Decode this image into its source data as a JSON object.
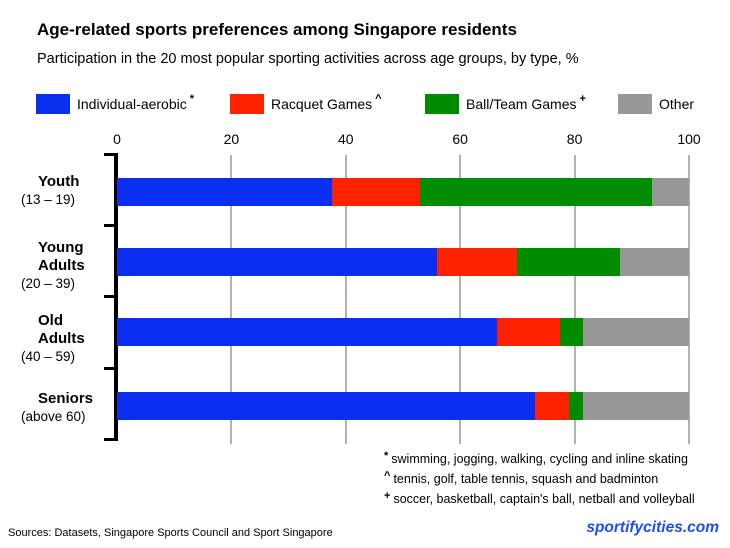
{
  "header": {
    "title": "Age-related sports preferences among Singapore residents",
    "subtitle": "Participation in the 20 most popular sporting activities across age groups, by type, %"
  },
  "legend": {
    "items": [
      {
        "label": "Individual-aerobic",
        "marker": "*",
        "color": "#0a2ff1"
      },
      {
        "label": "Racquet Games",
        "marker": "^",
        "color": "#ff2200"
      },
      {
        "label": "Ball/Team Games",
        "marker": "+",
        "color": "#008c00"
      },
      {
        "label": "Other",
        "marker": "",
        "color": "#989898"
      }
    ]
  },
  "chart_data": {
    "type": "bar",
    "orientation": "horizontal",
    "stacked": true,
    "unit": "%",
    "xlim": [
      0,
      100
    ],
    "x_ticks": [
      0,
      20,
      40,
      60,
      80,
      100
    ],
    "grid": true,
    "gridline_color": "#b3b3b3",
    "categories": [
      {
        "name_lines": [
          "Youth"
        ],
        "range": "(13 – 19)"
      },
      {
        "name_lines": [
          "Young",
          "Adults"
        ],
        "range": "(20 – 39)"
      },
      {
        "name_lines": [
          "Old",
          "Adults"
        ],
        "range": "(40 – 59)"
      },
      {
        "name_lines": [
          "Seniors"
        ],
        "range": "(above 60)"
      }
    ],
    "series": [
      {
        "name": "Individual-aerobic",
        "color": "#0a2ff1",
        "values": [
          37.5,
          56,
          66.5,
          73
        ]
      },
      {
        "name": "Racquet Games",
        "color": "#ff2200",
        "values": [
          15.5,
          14,
          11,
          6
        ]
      },
      {
        "name": "Ball/Team Games",
        "color": "#008c00",
        "values": [
          40.5,
          18,
          4,
          2.5
        ]
      },
      {
        "name": "Other",
        "color": "#989898",
        "values": [
          6.5,
          12,
          18.5,
          18.5
        ]
      }
    ]
  },
  "footnotes": [
    {
      "marker": "*",
      "text": "swimming, jogging, walking, cycling and inline skating"
    },
    {
      "marker": "^",
      "text": "tennis, golf, table tennis, squash and badminton"
    },
    {
      "marker": "+",
      "text": "soccer, basketball, captain's ball, netball and volleyball"
    }
  ],
  "footer": {
    "sources": "Sources:  Datasets, Singapore Sports Council and Sport Singapore",
    "watermark": "sportifycities.com"
  }
}
